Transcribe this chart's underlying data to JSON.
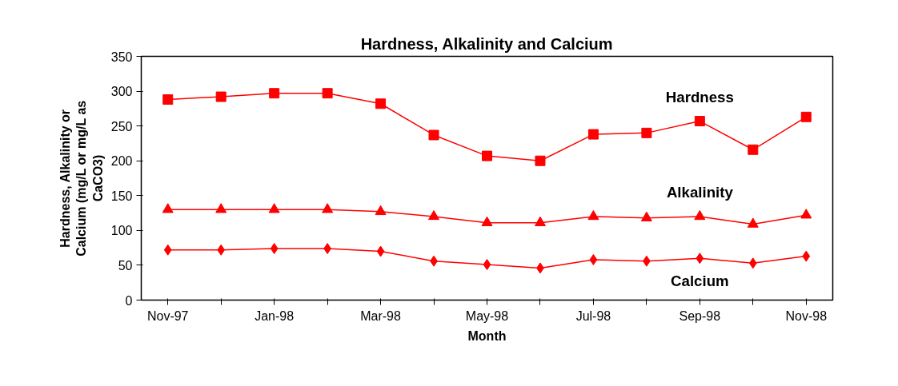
{
  "chart_data": {
    "type": "line",
    "title": "Hardness, Alkalinity and Calcium",
    "xlabel": "Month",
    "ylabel": "Hardness, Alkalinity or Calcium (mg/L or mg/L as CaCO3)",
    "categories": [
      "Nov-97",
      null,
      "Jan-98",
      null,
      "Mar-98",
      null,
      "May-98",
      null,
      "Jul-98",
      null,
      "Sep-98",
      null,
      "Nov-98"
    ],
    "ylim": [
      0,
      350
    ],
    "yticks": [
      0,
      50,
      100,
      150,
      200,
      250,
      300,
      350
    ],
    "grid": false,
    "line_style": "solid",
    "series": [
      {
        "name": "Hardness",
        "color": "#ff0000",
        "marker": "square",
        "values": [
          288,
          292,
          297,
          297,
          282,
          237,
          207,
          200,
          238,
          240,
          257,
          216,
          263
        ]
      },
      {
        "name": "Alkalinity",
        "color": "#ff0000",
        "marker": "triangle",
        "values": [
          130,
          130,
          130,
          130,
          127,
          120,
          111,
          111,
          120,
          118,
          120,
          109,
          122
        ]
      },
      {
        "name": "Calcium",
        "color": "#ff0000",
        "marker": "diamond",
        "values": [
          72,
          72,
          74,
          74,
          70,
          56,
          51,
          46,
          58,
          56,
          60,
          53,
          63
        ]
      }
    ]
  }
}
